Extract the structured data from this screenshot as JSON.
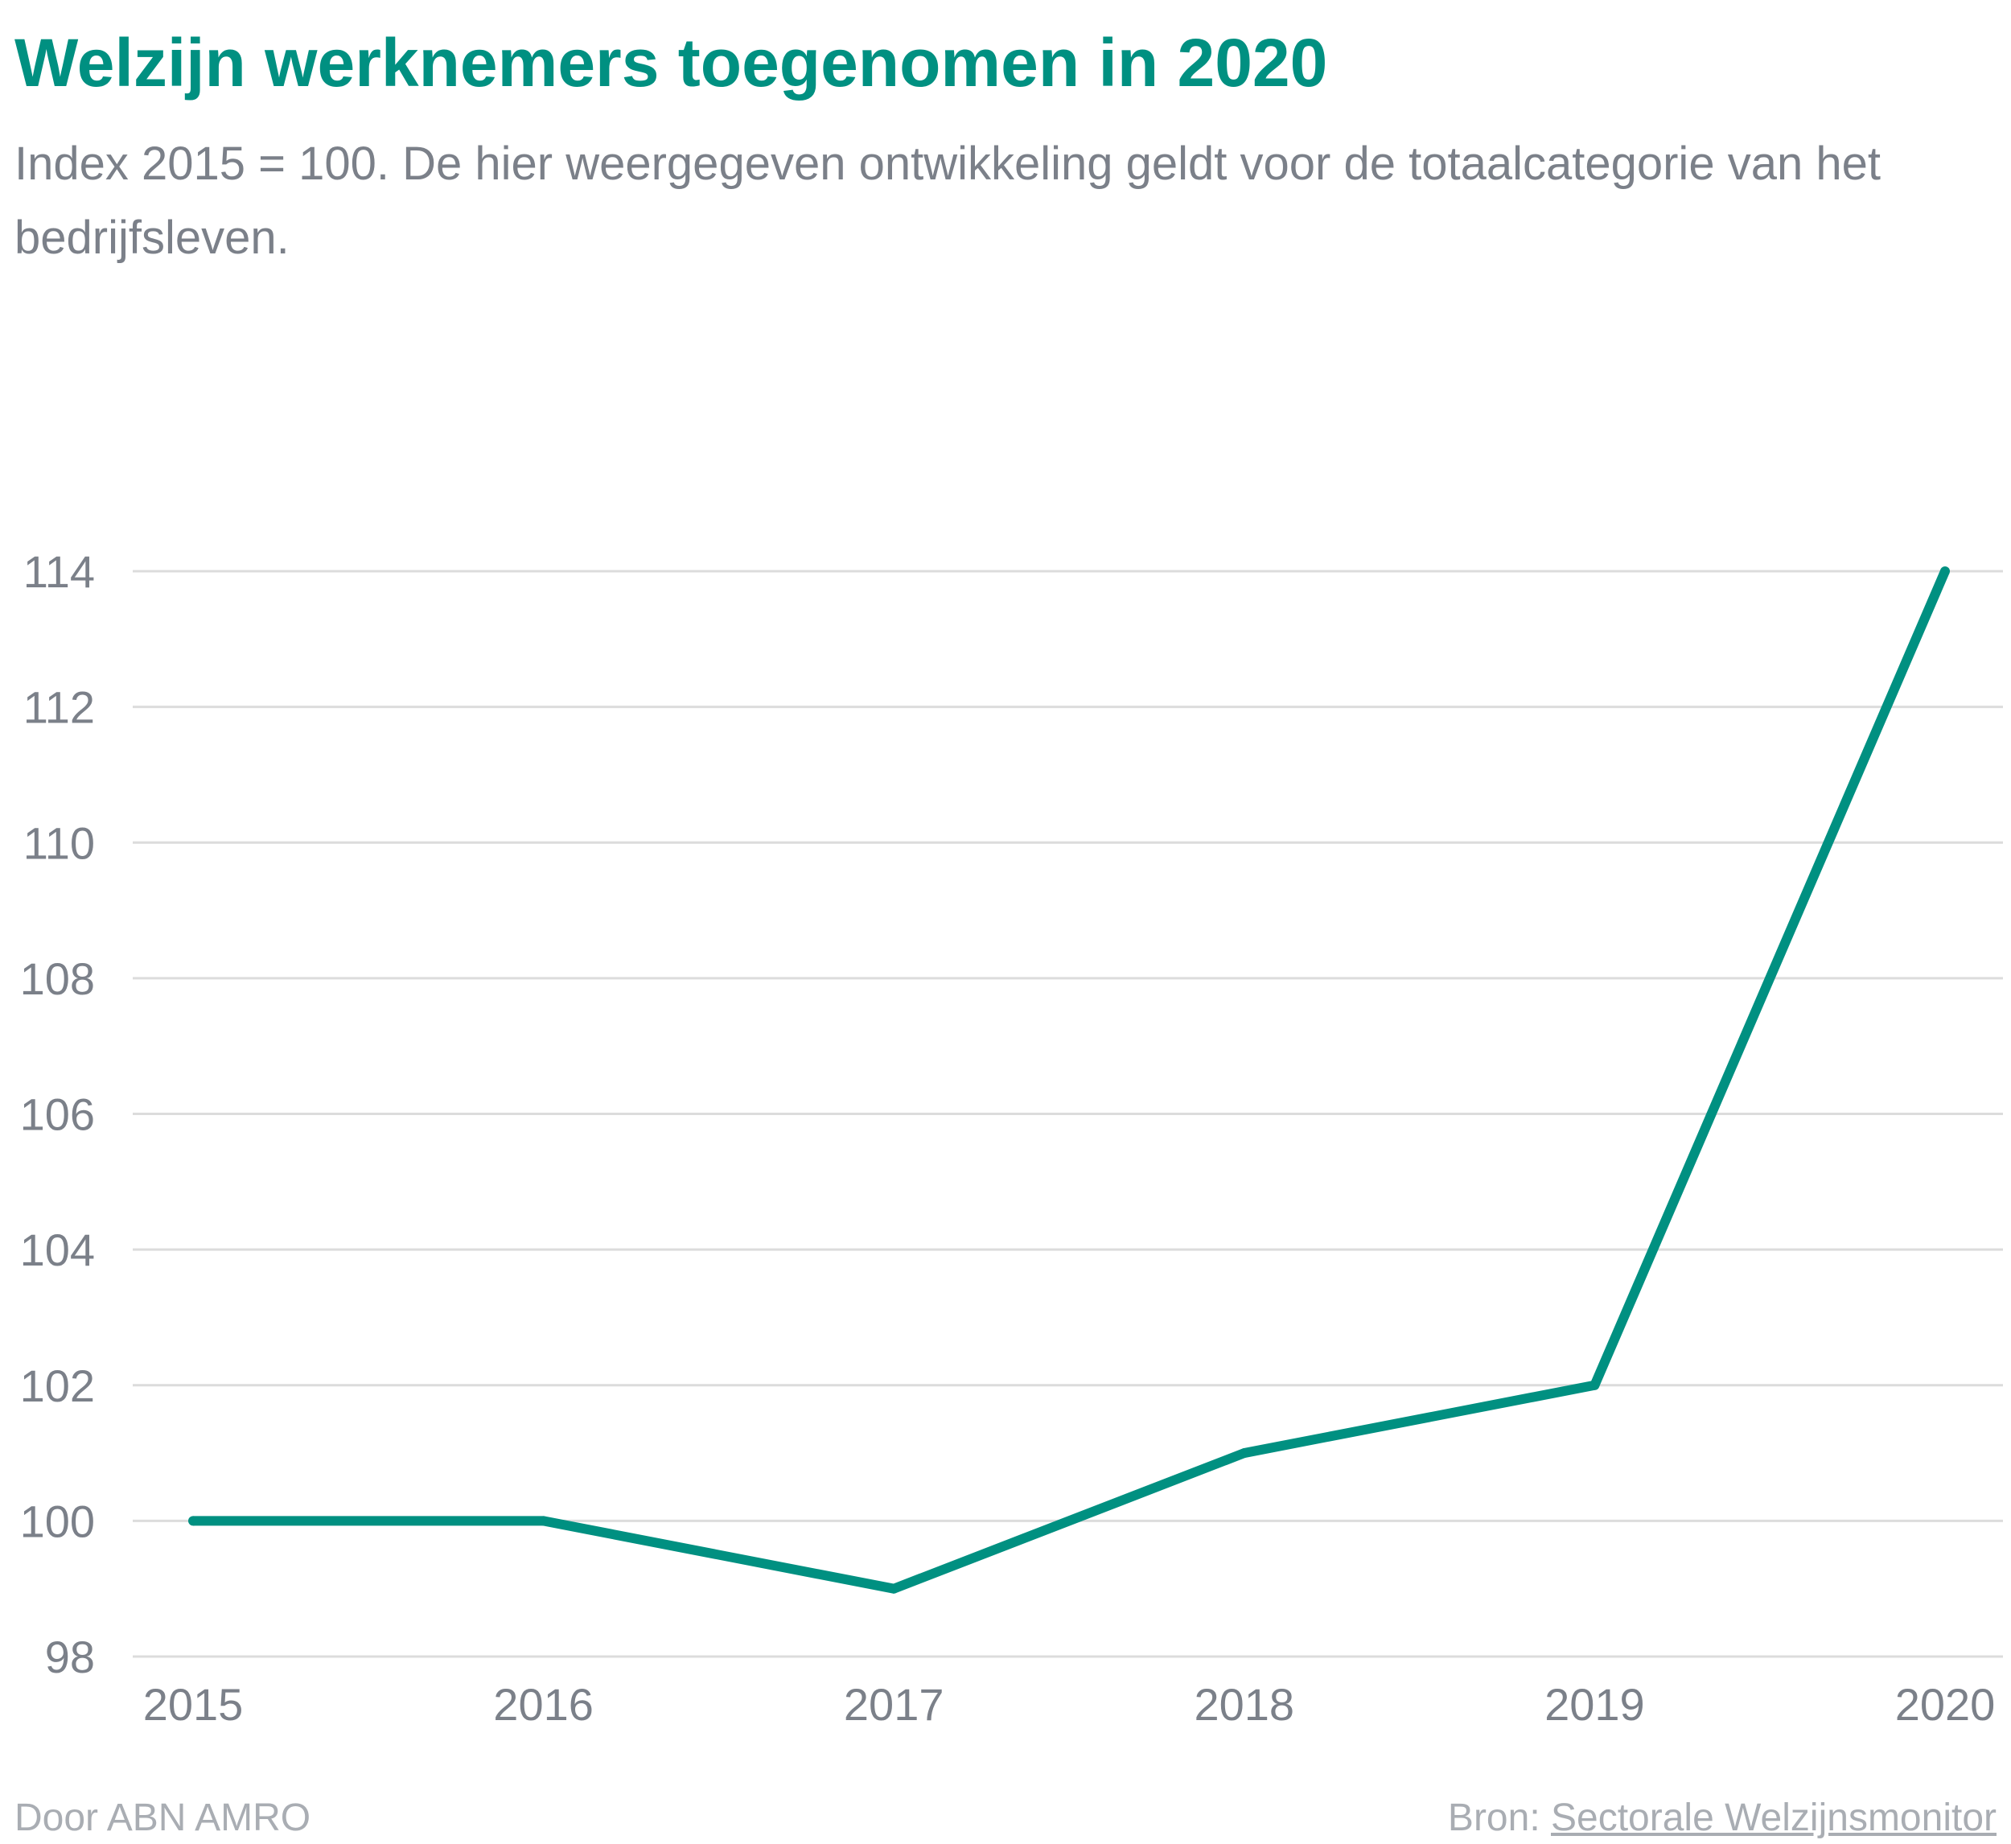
{
  "header": {
    "title": "Welzijn werknemers toegenomen in 2020",
    "subtitle": "Index 2015 = 100. De hier weergegeven ontwikkeling geldt voor de totaalcategorie van het bedrijfsleven."
  },
  "footer": {
    "credit": "Door ABN AMRO",
    "source_label": "Bron:",
    "source_link": "Sectorale Welzijnsmonitor"
  },
  "colors": {
    "accent": "#009081",
    "text": "#7b8089",
    "grid": "#dcdcdc",
    "footer": "#a9adb3"
  },
  "chart_data": {
    "type": "line",
    "title": "Welzijn werknemers toegenomen in 2020",
    "subtitle": "Index 2015 = 100. De hier weergegeven ontwikkeling geldt voor de totaalcategorie van het bedrijfsleven.",
    "xlabel": "",
    "ylabel": "",
    "x": [
      "2015",
      "2016",
      "2017",
      "2018",
      "2019",
      "2020"
    ],
    "series": [
      {
        "values": [
          100,
          100,
          99,
          101,
          102,
          114
        ]
      }
    ],
    "ylim": [
      98,
      114
    ],
    "yticks": [
      98,
      100,
      102,
      104,
      106,
      108,
      110,
      112,
      114
    ],
    "grid": true,
    "legend": "none"
  }
}
